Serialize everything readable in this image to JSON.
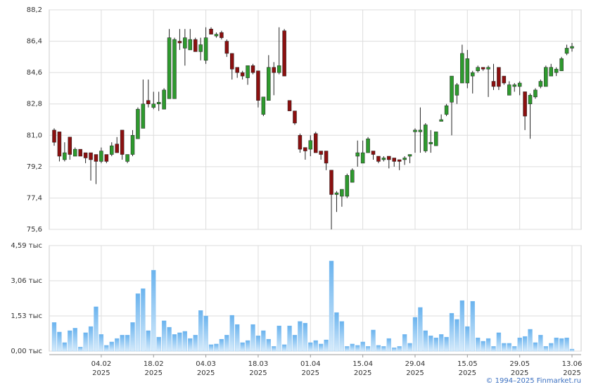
{
  "chart_data": {
    "type": "candlestick",
    "categories": [
      null,
      null,
      null,
      null,
      null,
      null,
      null,
      null,
      null,
      [
        "04.02",
        "2025"
      ],
      null,
      null,
      null,
      null,
      null,
      null,
      null,
      null,
      null,
      [
        "18.02",
        "2025"
      ],
      null,
      null,
      null,
      null,
      null,
      null,
      null,
      null,
      null,
      [
        "04.03",
        "2025"
      ],
      null,
      null,
      null,
      null,
      null,
      null,
      null,
      null,
      null,
      [
        "18.03",
        "2025"
      ],
      null,
      null,
      null,
      null,
      null,
      null,
      null,
      null,
      null,
      [
        "01.04",
        "2025"
      ],
      null,
      null,
      null,
      null,
      null,
      null,
      null,
      null,
      null,
      [
        "15.04",
        "2025"
      ],
      null,
      null,
      null,
      null,
      null,
      null,
      null,
      null,
      null,
      [
        "29.04",
        "2025"
      ],
      null,
      null,
      null,
      null,
      null,
      null,
      null,
      null,
      null,
      [
        "15.05",
        "2025"
      ],
      null,
      null,
      null,
      null,
      null,
      null,
      null,
      null,
      null,
      [
        "29.05",
        "2025"
      ],
      null,
      null,
      null,
      null,
      null,
      null,
      null,
      null,
      null,
      [
        "13.06",
        "2025"
      ]
    ],
    "open": [
      81.3,
      81.2,
      79.6,
      80.9,
      79.8,
      80.2,
      80.0,
      80.0,
      79.9,
      79.5,
      79.9,
      79.9,
      80.5,
      81.3,
      79.5,
      79.9,
      80.8,
      81.4,
      83.0,
      82.6,
      82.8,
      82.5,
      83.1,
      83.1,
      86.4,
      86.0,
      85.9,
      86.5,
      85.8,
      85.3,
      87.1,
      86.7,
      86.9,
      86.4,
      85.7,
      84.9,
      84.6,
      84.3,
      85.0,
      84.7,
      82.2,
      83.0,
      84.9,
      84.6,
      87.0,
      83.0,
      82.4,
      81.0,
      80.3,
      80.2,
      81.1,
      80.1,
      80.1,
      79.0,
      77.6,
      77.5,
      77.5,
      78.3,
      79.8,
      79.4,
      80.0,
      80.1,
      79.8,
      79.6,
      79.8,
      79.7,
      79.6,
      79.6,
      79.8,
      81.2,
      81.2,
      80.1,
      80.5,
      80.4,
      81.8,
      82.2,
      82.9,
      83.3,
      84.0,
      84.0,
      84.4,
      84.7,
      84.9,
      84.8,
      84.1,
      84.9,
      84.4,
      83.3,
      83.8,
      83.8,
      83.5,
      82.8,
      83.2,
      83.8,
      83.8,
      84.4,
      84.6,
      84.7,
      85.7,
      86.0
    ],
    "high": [
      81.4,
      81.2,
      80.6,
      80.9,
      80.3,
      80.2,
      80.0,
      80.0,
      79.9,
      80.3,
      79.9,
      80.6,
      80.9,
      81.3,
      79.9,
      81.3,
      82.6,
      84.2,
      84.2,
      83.5,
      83.5,
      83.7,
      87.1,
      86.6,
      87.1,
      87.1,
      87.1,
      86.6,
      86.6,
      87.2,
      87.2,
      86.9,
      87.0,
      86.5,
      85.7,
      84.9,
      84.7,
      85.0,
      85.1,
      84.7,
      83.2,
      85.6,
      85.2,
      87.2,
      87.1,
      83.0,
      82.4,
      81.1,
      80.3,
      81.0,
      81.2,
      80.1,
      80.1,
      79.0,
      77.8,
      77.9,
      78.8,
      79.1,
      80.7,
      80.7,
      80.9,
      80.1,
      79.8,
      79.8,
      79.8,
      79.7,
      79.6,
      79.8,
      79.9,
      81.4,
      82.6,
      81.7,
      81.3,
      81.2,
      82.2,
      82.8,
      84.4,
      84.0,
      86.2,
      85.9,
      84.7,
      85.0,
      84.9,
      85.0,
      85.1,
      84.9,
      84.4,
      84.1,
      84.0,
      84.1,
      83.5,
      83.4,
      83.7,
      84.2,
      85.0,
      85.1,
      84.9,
      85.5,
      86.2,
      86.3
    ],
    "low": [
      80.4,
      79.5,
      79.5,
      79.6,
      79.8,
      79.8,
      79.4,
      78.4,
      78.2,
      79.4,
      79.4,
      79.8,
      80.0,
      79.6,
      79.4,
      79.8,
      80.8,
      81.4,
      82.6,
      82.5,
      82.4,
      82.5,
      83.1,
      83.1,
      85.9,
      85.0,
      85.9,
      85.8,
      85.3,
      85.1,
      86.8,
      86.6,
      86.5,
      85.5,
      84.2,
      84.3,
      84.2,
      83.9,
      84.5,
      82.6,
      82.1,
      83.0,
      83.3,
      84.5,
      84.4,
      82.4,
      81.6,
      80.0,
      79.6,
      79.8,
      80.0,
      79.6,
      79.0,
      75.6,
      76.6,
      76.9,
      77.4,
      78.3,
      79.2,
      79.4,
      80.0,
      79.6,
      79.4,
      79.5,
      79.1,
      79.2,
      79.0,
      79.3,
      79.4,
      80.0,
      80.0,
      80.0,
      80.0,
      80.4,
      81.8,
      82.1,
      81.0,
      82.8,
      84.0,
      83.7,
      83.4,
      84.6,
      84.7,
      83.2,
      83.6,
      83.6,
      83.9,
      83.3,
      83.5,
      83.3,
      81.3,
      80.8,
      83.1,
      83.7,
      83.8,
      84.4,
      84.4,
      84.7,
      85.6,
      85.8
    ],
    "close": [
      80.6,
      79.8,
      80.0,
      79.9,
      80.2,
      79.8,
      79.7,
      79.6,
      79.5,
      80.1,
      79.5,
      80.4,
      80.0,
      79.9,
      79.9,
      81.0,
      82.5,
      82.8,
      82.8,
      82.8,
      82.9,
      83.6,
      86.6,
      86.5,
      86.3,
      86.6,
      86.5,
      85.8,
      86.2,
      86.6,
      86.8,
      86.8,
      86.6,
      85.7,
      84.8,
      84.6,
      84.4,
      85.0,
      84.6,
      83.0,
      83.2,
      84.9,
      84.6,
      85.0,
      84.4,
      82.4,
      81.7,
      80.2,
      80.1,
      80.7,
      80.0,
      79.9,
      79.4,
      77.6,
      77.7,
      77.9,
      78.7,
      79.0,
      80.0,
      80.0,
      80.8,
      79.9,
      79.5,
      79.7,
      79.6,
      79.5,
      79.5,
      79.7,
      79.9,
      81.3,
      81.3,
      81.6,
      80.6,
      81.2,
      81.9,
      82.7,
      84.4,
      83.9,
      85.7,
      85.4,
      84.6,
      84.9,
      84.8,
      84.9,
      83.8,
      83.8,
      84.0,
      83.9,
      83.9,
      84.0,
      82.1,
      83.3,
      83.6,
      84.1,
      84.9,
      84.9,
      84.8,
      85.4,
      86.0,
      86.1
    ],
    "up_color": "#2e9a2e",
    "down_color": "#8b1010",
    "ylim": [
      75.6,
      88.2
    ],
    "yticks": [
      {
        "value": 75.6,
        "label": "75,6"
      },
      {
        "value": 77.4,
        "label": "77,4"
      },
      {
        "value": 79.2,
        "label": "79,2"
      },
      {
        "value": 81.0,
        "label": "81,0"
      },
      {
        "value": 82.8,
        "label": "82,8"
      },
      {
        "value": 84.6,
        "label": "84,6"
      },
      {
        "value": 86.4,
        "label": "86,4"
      },
      {
        "value": 88.2,
        "label": "88,2"
      }
    ],
    "grid": true,
    "volume": {
      "color": "#7cbcf0",
      "ylim": [
        0,
        4.59
      ],
      "yticks": [
        {
          "value": 0,
          "label": "0,00 тыс"
        },
        {
          "value": 1.53,
          "label": "1,53 тыс"
        },
        {
          "value": 3.06,
          "label": "3,06 тыс"
        },
        {
          "value": 4.59,
          "label": "4,59 тыс"
        }
      ],
      "values": [
        1.25,
        0.83,
        0.37,
        0.89,
        1.0,
        0.18,
        0.8,
        1.07,
        1.93,
        0.73,
        0.25,
        0.4,
        0.55,
        0.7,
        0.7,
        1.25,
        2.5,
        2.72,
        0.89,
        3.52,
        0.61,
        1.32,
        1.04,
        0.73,
        0.8,
        0.86,
        0.55,
        0.7,
        1.77,
        1.53,
        0.28,
        0.31,
        0.52,
        0.7,
        1.56,
        1.16,
        0.37,
        0.46,
        1.16,
        0.67,
        0.89,
        0.52,
        0.21,
        1.1,
        0.28,
        1.1,
        0.7,
        1.29,
        1.22,
        0.37,
        0.46,
        0.31,
        0.49,
        3.92,
        1.68,
        1.29,
        0.21,
        0.31,
        0.25,
        0.4,
        0.21,
        0.92,
        0.25,
        0.21,
        0.55,
        0.15,
        0.21,
        0.73,
        0.34,
        1.47,
        1.9,
        0.89,
        0.67,
        0.58,
        0.73,
        0.61,
        1.65,
        1.38,
        2.2,
        1.07,
        2.17,
        0.58,
        0.43,
        0.55,
        0.21,
        0.8,
        0.34,
        0.34,
        0.21,
        0.58,
        0.64,
        0.95,
        0.37,
        0.7,
        0.21,
        0.34,
        0.58,
        0.55,
        0.58,
        0.09
      ]
    },
    "source": "© 1994–2025 Finmarket.ru"
  }
}
